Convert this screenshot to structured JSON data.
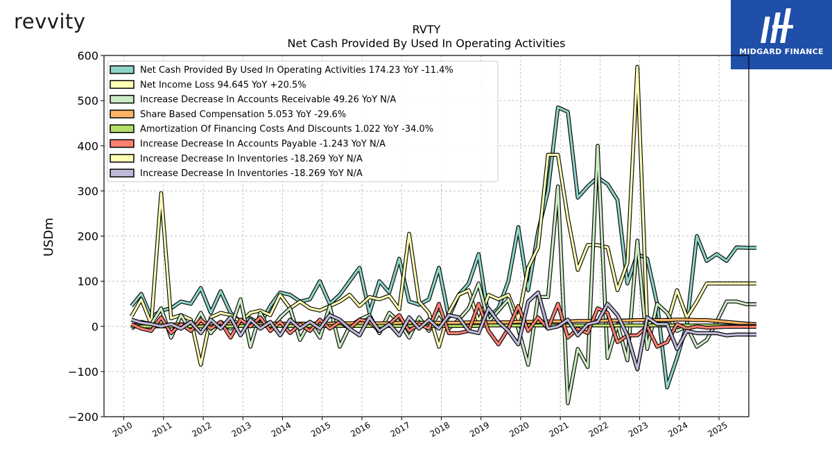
{
  "header": {
    "brand": "revvity",
    "watermark_text": "MIDGARD FINANCE"
  },
  "chart_data": {
    "type": "line",
    "title": "RVTY",
    "subtitle": "Net Cash Provided By Used In Operating Activities",
    "ylabel": "USDm",
    "xlabel": "",
    "ylim": [
      -200,
      600
    ],
    "xlim": [
      2009.5,
      2025.75
    ],
    "yticks": [
      -200,
      -100,
      0,
      100,
      200,
      300,
      400,
      500,
      600
    ],
    "ytick_labels": [
      "−200",
      "−100",
      "0",
      "100",
      "200",
      "300",
      "400",
      "500",
      "600"
    ],
    "xticks": [
      2010,
      2011,
      2012,
      2013,
      2014,
      2015,
      2016,
      2017,
      2018,
      2019,
      2020,
      2021,
      2022,
      2023,
      2024,
      2025
    ],
    "xtick_labels": [
      "2010",
      "2011",
      "2012",
      "2013",
      "2014",
      "2015",
      "2016",
      "2017",
      "2018",
      "2019",
      "2020",
      "2021",
      "2022",
      "2023",
      "2024",
      "2025"
    ],
    "grid": true,
    "legend_position": "top-left",
    "x": [
      2010.19,
      2010.44,
      2010.69,
      2010.94,
      2011.19,
      2011.44,
      2011.69,
      2011.94,
      2012.19,
      2012.44,
      2012.69,
      2012.94,
      2013.19,
      2013.44,
      2013.69,
      2013.94,
      2014.19,
      2014.44,
      2014.69,
      2014.94,
      2015.19,
      2015.44,
      2015.69,
      2015.94,
      2016.19,
      2016.44,
      2016.69,
      2016.94,
      2017.19,
      2017.44,
      2017.69,
      2017.94,
      2018.19,
      2018.44,
      2018.69,
      2018.94,
      2019.19,
      2019.44,
      2019.69,
      2019.94,
      2020.19,
      2020.44,
      2020.69,
      2020.94,
      2021.19,
      2021.44,
      2021.69,
      2021.94,
      2022.19,
      2022.44,
      2022.69,
      2022.94,
      2023.19,
      2023.44,
      2023.69,
      2023.94,
      2024.19,
      2024.44,
      2024.69,
      2024.94,
      2025.19,
      2025.44,
      2025.69,
      2025.94
    ],
    "series": [
      {
        "name": "Net Cash Provided By Used In Operating Activities  174.23 YoY -11.4%",
        "color": "#8dd3c7",
        "values": [
          45,
          72,
          20,
          35,
          40,
          55,
          50,
          85,
          30,
          78,
          30,
          10,
          18,
          5,
          45,
          75,
          70,
          55,
          60,
          100,
          50,
          70,
          100,
          130,
          30,
          100,
          75,
          150,
          55,
          48,
          60,
          130,
          20,
          70,
          95,
          160,
          20,
          40,
          100,
          220,
          80,
          210,
          300,
          485,
          475,
          285,
          310,
          330,
          315,
          280,
          95,
          160,
          150,
          50,
          -135,
          -70,
          5,
          200,
          145,
          160,
          145,
          175,
          174,
          174
        ]
      },
      {
        "name": "Net Income Loss  94.645 YoY +20.5%",
        "color": "#ffffb3",
        "values": [
          22,
          60,
          5,
          295,
          18,
          25,
          15,
          -85,
          20,
          30,
          25,
          10,
          30,
          35,
          25,
          70,
          40,
          55,
          40,
          35,
          45,
          55,
          70,
          45,
          65,
          60,
          68,
          38,
          205,
          55,
          30,
          -45,
          30,
          70,
          80,
          10,
          70,
          60,
          70,
          15,
          130,
          175,
          380,
          380,
          240,
          125,
          180,
          180,
          175,
          80,
          140,
          575,
          5,
          15,
          5,
          80,
          20,
          55,
          95,
          95,
          95,
          95,
          95,
          95
        ]
      },
      {
        "name": "Increase Decrease In Accounts Receivable  49.26 YoY N/A",
        "color": "#bebada",
        "values": [
          -5,
          10,
          5,
          40,
          -25,
          25,
          -10,
          30,
          -15,
          10,
          -5,
          60,
          -45,
          30,
          -10,
          20,
          40,
          -30,
          10,
          -25,
          45,
          -45,
          0,
          15,
          25,
          -15,
          30,
          10,
          -25,
          20,
          -10,
          30,
          -5,
          15,
          40,
          95,
          10,
          35,
          60,
          -5,
          -85,
          65,
          65,
          310,
          -170,
          -50,
          -90,
          400,
          -70,
          5,
          -75,
          190,
          -50,
          50,
          30,
          -10,
          0,
          -45,
          -30,
          10,
          55,
          55,
          49,
          49
        ]
      },
      {
        "name": "Share Based Compensation  5.053 YoY -29.6%",
        "color": "#fb8072",
        "values": [
          3,
          3,
          4,
          4,
          4,
          4,
          4,
          5,
          5,
          5,
          5,
          5,
          5,
          5,
          6,
          6,
          6,
          6,
          6,
          6,
          6,
          7,
          7,
          7,
          7,
          7,
          7,
          8,
          8,
          8,
          8,
          8,
          8,
          8,
          9,
          9,
          9,
          9,
          9,
          10,
          10,
          10,
          11,
          11,
          11,
          12,
          12,
          12,
          13,
          13,
          13,
          14,
          14,
          14,
          14,
          15,
          15,
          14,
          14,
          12,
          10,
          8,
          6,
          5
        ]
      },
      {
        "name": "Amortization Of Financing Costs And Discounts  1.022 YoY -34.0%",
        "color": "#80b1d3",
        "values": [
          0,
          0,
          0,
          0,
          0,
          0,
          0,
          0,
          0,
          0,
          0,
          1,
          1,
          1,
          1,
          1,
          1,
          1,
          1,
          1,
          1,
          1,
          1,
          1,
          1,
          1,
          1,
          1,
          1,
          1,
          1,
          1,
          1,
          1,
          1,
          1,
          2,
          2,
          2,
          2,
          2,
          2,
          2,
          2,
          2,
          2,
          2,
          2,
          2,
          2,
          2,
          2,
          2,
          2,
          2,
          2,
          2,
          2,
          2,
          2,
          1,
          1,
          1,
          1
        ]
      },
      {
        "name": "Increase Decrease In Accounts Payable  -1.243 YoY N/A",
        "color": "#fdb462",
        "values": [
          5,
          -5,
          -10,
          20,
          -15,
          5,
          -10,
          15,
          -5,
          10,
          -25,
          15,
          0,
          20,
          -10,
          10,
          -15,
          5,
          -10,
          15,
          -5,
          10,
          -5,
          15,
          10,
          -10,
          5,
          25,
          -10,
          5,
          -5,
          50,
          -15,
          -15,
          -10,
          50,
          -10,
          -40,
          -5,
          45,
          -10,
          20,
          -5,
          50,
          -25,
          -5,
          -15,
          40,
          30,
          -35,
          -20,
          -20,
          0,
          -45,
          -35,
          5,
          -5,
          0,
          -3,
          -2,
          -1,
          -1,
          -1,
          -1
        ]
      },
      {
        "name": "Increase Decrease In Inventories  -18.269 YoY N/A",
        "color": "#b3de69",
        "values": [
          15,
          8,
          5,
          0,
          5,
          -5,
          10,
          -15,
          15,
          -5,
          20,
          -20,
          15,
          -5,
          10,
          -20,
          15,
          -5,
          10,
          -5,
          25,
          15,
          -5,
          -20,
          20,
          -10,
          5,
          -20,
          20,
          -5,
          15,
          -5,
          25,
          20,
          -10,
          -15,
          40,
          10,
          -10,
          -40,
          55,
          75,
          -5,
          0,
          15,
          -20,
          5,
          10,
          50,
          25,
          -20,
          -95,
          20,
          5,
          5,
          -50,
          -10,
          -15,
          -15,
          -15,
          -20,
          -18,
          -18,
          -18
        ]
      },
      {
        "name": "Increase Decrease In Inventories  -18.269 YoY N/A",
        "color": "#bebada",
        "values": [
          15,
          8,
          5,
          0,
          5,
          -5,
          10,
          -15,
          15,
          -5,
          20,
          -20,
          15,
          -5,
          10,
          -20,
          15,
          -5,
          10,
          -5,
          25,
          15,
          -5,
          -20,
          20,
          -10,
          5,
          -20,
          20,
          -5,
          15,
          -5,
          25,
          20,
          -10,
          -15,
          40,
          10,
          -10,
          -40,
          55,
          75,
          -5,
          0,
          15,
          -20,
          5,
          10,
          50,
          25,
          -20,
          -95,
          20,
          5,
          5,
          -50,
          -10,
          -15,
          -15,
          -15,
          -20,
          -18,
          -18,
          -18
        ]
      }
    ],
    "series_draw_colors": [
      "#8dd3c7",
      "#ffffb3",
      "#ccebc5",
      "#fdb462",
      "#b3de69",
      "#fb8072",
      "#ffffb3",
      "#bebada"
    ],
    "series_draw_order": [
      0,
      1,
      2,
      3,
      4,
      5,
      6,
      7
    ]
  }
}
